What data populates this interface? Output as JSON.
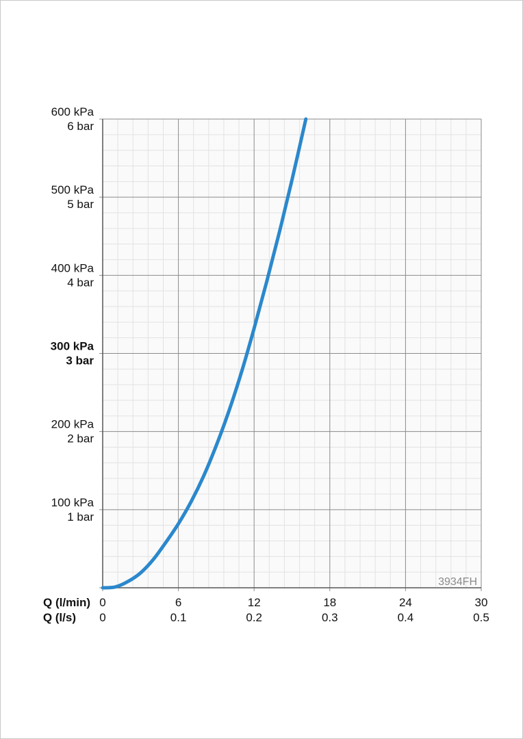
{
  "chart_data": {
    "type": "line",
    "xlabel_primary": "Q (l/min)",
    "xlabel_secondary": "Q (l/s)",
    "x_ticks": [
      0,
      6,
      12,
      18,
      24,
      30
    ],
    "x_ticks_secondary": [
      "0",
      "0.1",
      "0.2",
      "0.3",
      "0.4",
      "0.5"
    ],
    "xlim": [
      0,
      30
    ],
    "ylim": [
      0,
      600
    ],
    "y_ticks": [
      {
        "value": 100,
        "kpa": "100 kPa",
        "bar": "1 bar",
        "bold": false
      },
      {
        "value": 200,
        "kpa": "200 kPa",
        "bar": "2 bar",
        "bold": false
      },
      {
        "value": 300,
        "kpa": "300 kPa",
        "bar": "3 bar",
        "bold": true
      },
      {
        "value": 400,
        "kpa": "400 kPa",
        "bar": "4 bar",
        "bold": false
      },
      {
        "value": 500,
        "kpa": "500 kPa",
        "bar": "5 bar",
        "bold": false
      },
      {
        "value": 600,
        "kpa": "600 kPa",
        "bar": "6 bar",
        "bold": false
      }
    ],
    "grid": true,
    "minor_grid_divisions": 5,
    "annotation": "3934FH",
    "series": [
      {
        "color": "#2b88cc",
        "x": [
          0,
          1,
          2,
          3,
          4,
          5,
          6,
          7,
          8,
          9,
          10,
          11,
          12,
          13,
          14,
          15,
          16.1
        ],
        "y": [
          0,
          1,
          8,
          19,
          36,
          58,
          82,
          110,
          143,
          182,
          226,
          276,
          332,
          392,
          455,
          522,
          600
        ]
      }
    ]
  }
}
